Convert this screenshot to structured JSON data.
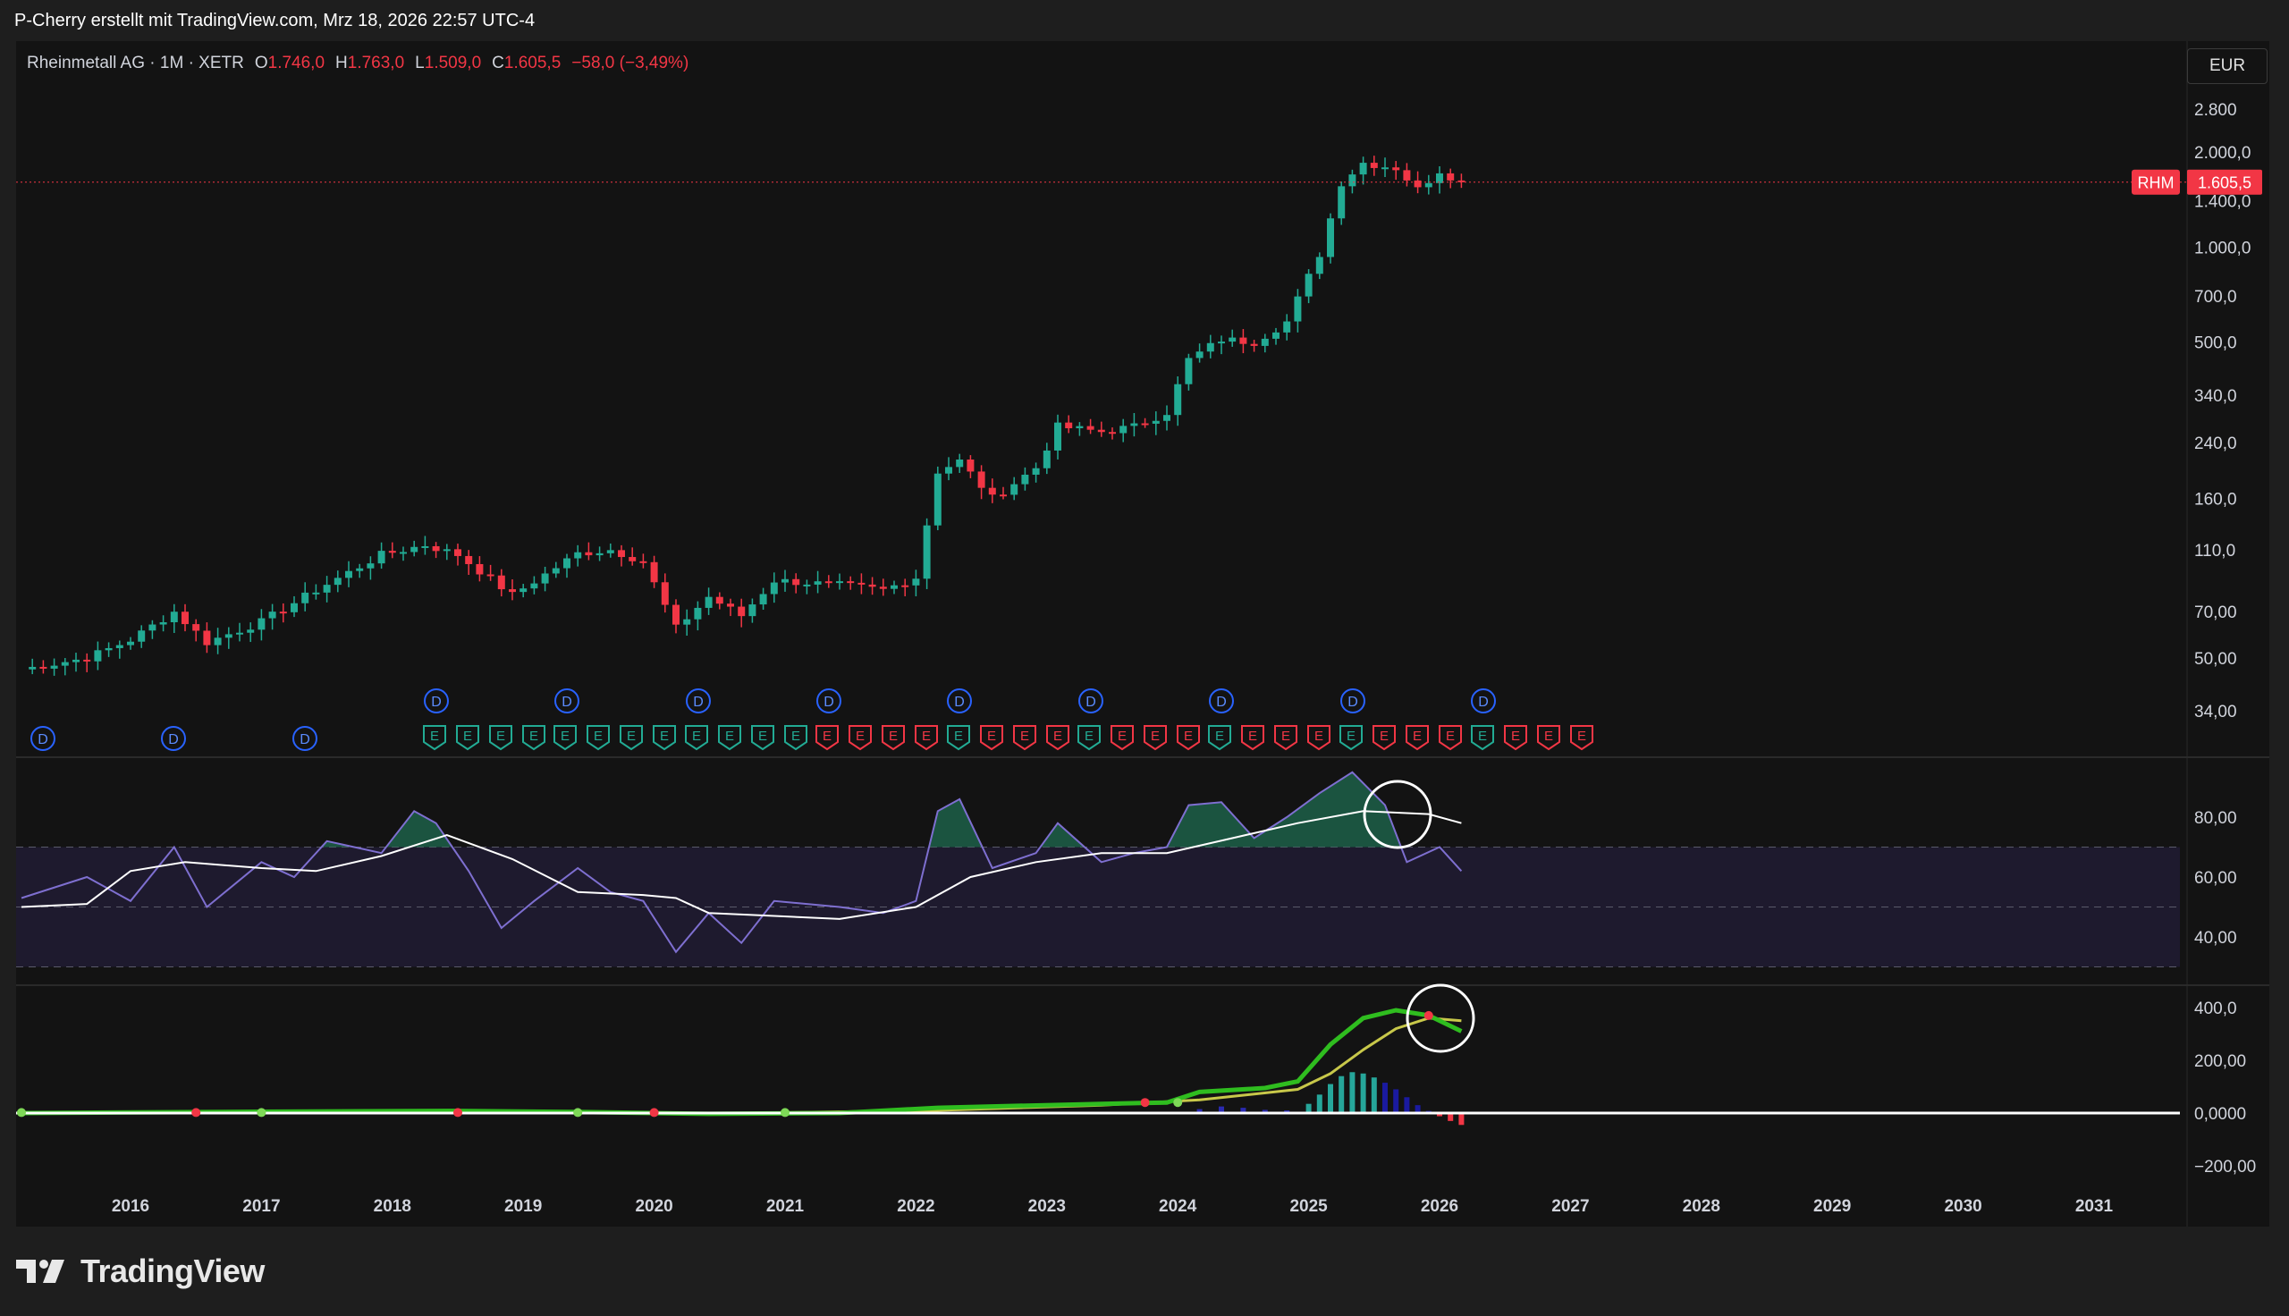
{
  "header": {
    "credit": "P-Cherry erstellt mit TradingView.com, Mrz 18, 2026 22:57 UTC-4"
  },
  "legend": {
    "symbol": "Rheinmetall AG · 1M · XETR",
    "open_label": "O",
    "open": "1.746,0",
    "high_label": "H",
    "high": "1.763,0",
    "low_label": "L",
    "low": "1.509,0",
    "close_label": "C",
    "close": "1.605,5",
    "change": "−58,0 (−3,49%)"
  },
  "currency_button": "EUR",
  "price_tag": {
    "ticker": "RHM",
    "value": "1.605,5"
  },
  "footer": {
    "brand": "TradingView"
  },
  "colors": {
    "background": "#131313",
    "up": "#22ab94",
    "down": "#f23645",
    "rsi": "#7e6fd0",
    "rsi_ma": "#ffffff",
    "macd": "#2fbd1f",
    "signal": "#c8c84a",
    "hist_neg": "#f23645"
  },
  "chart_data": [
    {
      "type": "candlestick",
      "name": "price",
      "scale": "log",
      "y_ticks": [
        2800,
        2000,
        1400,
        1000,
        700,
        500,
        340,
        240,
        160,
        110,
        70,
        50,
        34
      ],
      "y_tick_labels": [
        "2.800",
        "2.000,0",
        "1.400,0",
        "1.000,0",
        "700,0",
        "500,0",
        "340,0",
        "240,0",
        "160,0",
        "110,0",
        "70,00",
        "50,00",
        "34,00"
      ],
      "x_ticks": [
        "2016",
        "2017",
        "2018",
        "2019",
        "2020",
        "2021",
        "2022",
        "2023",
        "2024",
        "2025",
        "2026",
        "2027",
        "2028",
        "2029",
        "2030",
        "2031"
      ],
      "last_price": 1605.5,
      "anchors": [
        [
          "2015-03",
          46
        ],
        [
          "2015-09",
          50
        ],
        [
          "2016-01",
          57
        ],
        [
          "2016-05",
          70
        ],
        [
          "2016-08",
          56
        ],
        [
          "2017-01",
          65
        ],
        [
          "2017-06",
          82
        ],
        [
          "2017-12",
          106
        ],
        [
          "2018-04",
          114
        ],
        [
          "2018-07",
          106
        ],
        [
          "2018-12",
          79
        ],
        [
          "2019-06",
          107
        ],
        [
          "2019-09",
          110
        ],
        [
          "2019-12",
          101
        ],
        [
          "2020-03",
          62
        ],
        [
          "2020-06",
          78
        ],
        [
          "2020-09",
          68
        ],
        [
          "2020-12",
          88
        ],
        [
          "2021-06",
          85
        ],
        [
          "2021-10",
          82
        ],
        [
          "2022-01",
          90
        ],
        [
          "2022-03",
          195
        ],
        [
          "2022-05",
          210
        ],
        [
          "2022-08",
          160
        ],
        [
          "2022-12",
          200
        ],
        [
          "2023-02",
          270
        ],
        [
          "2023-06",
          260
        ],
        [
          "2023-09",
          270
        ],
        [
          "2023-12",
          300
        ],
        [
          "2024-02",
          440
        ],
        [
          "2024-05",
          510
        ],
        [
          "2024-08",
          500
        ],
        [
          "2024-11",
          580
        ],
        [
          "2025-02",
          950
        ],
        [
          "2025-04",
          1600
        ],
        [
          "2025-06",
          1850
        ],
        [
          "2025-09",
          1780
        ],
        [
          "2025-11",
          1520
        ],
        [
          "2026-01",
          1746
        ],
        [
          "2026-03",
          1605.5
        ]
      ],
      "dividend_markers": [
        "D",
        "D",
        "D",
        "D",
        "D",
        "D",
        "D",
        "D",
        "D",
        "D",
        "D",
        "D"
      ],
      "earnings_markers": [
        "E",
        "E",
        "E",
        "E",
        "E",
        "E",
        "E",
        "E",
        "E",
        "E",
        "E",
        "E",
        "E",
        "E",
        "E",
        "E",
        "E",
        "E",
        "E",
        "E",
        "E",
        "E",
        "E",
        "E",
        "E",
        "E",
        "E",
        "E",
        "E",
        "E",
        "E",
        "E",
        "E",
        "E",
        "E",
        "E"
      ]
    },
    {
      "type": "line",
      "name": "rsi",
      "y_ticks": [
        80,
        60,
        40
      ],
      "y_tick_labels": [
        "80,00",
        "60,00",
        "40,00"
      ],
      "band": [
        30,
        70
      ],
      "mid": 50,
      "series_rsi": [
        [
          "2015-03",
          53
        ],
        [
          "2015-09",
          60
        ],
        [
          "2016-01",
          52
        ],
        [
          "2016-05",
          70
        ],
        [
          "2016-08",
          50
        ],
        [
          "2017-01",
          65
        ],
        [
          "2017-04",
          60
        ],
        [
          "2017-07",
          72
        ],
        [
          "2017-12",
          68
        ],
        [
          "2018-03",
          82
        ],
        [
          "2018-05",
          78
        ],
        [
          "2018-08",
          62
        ],
        [
          "2018-11",
          43
        ],
        [
          "2019-02",
          52
        ],
        [
          "2019-06",
          63
        ],
        [
          "2019-09",
          55
        ],
        [
          "2019-12",
          52
        ],
        [
          "2020-03",
          35
        ],
        [
          "2020-06",
          48
        ],
        [
          "2020-09",
          38
        ],
        [
          "2020-12",
          52
        ],
        [
          "2021-06",
          50
        ],
        [
          "2021-10",
          48
        ],
        [
          "2022-01",
          52
        ],
        [
          "2022-03",
          82
        ],
        [
          "2022-05",
          86
        ],
        [
          "2022-08",
          63
        ],
        [
          "2022-12",
          68
        ],
        [
          "2023-02",
          78
        ],
        [
          "2023-06",
          65
        ],
        [
          "2023-09",
          68
        ],
        [
          "2023-12",
          70
        ],
        [
          "2024-02",
          84
        ],
        [
          "2024-05",
          85
        ],
        [
          "2024-08",
          73
        ],
        [
          "2024-11",
          80
        ],
        [
          "2025-02",
          88
        ],
        [
          "2025-05",
          95
        ],
        [
          "2025-08",
          84
        ],
        [
          "2025-10",
          65
        ],
        [
          "2026-01",
          70
        ],
        [
          "2026-03",
          62
        ]
      ],
      "series_ma": [
        [
          "2015-03",
          50
        ],
        [
          "2015-09",
          51
        ],
        [
          "2016-01",
          62
        ],
        [
          "2016-06",
          65
        ],
        [
          "2017-01",
          63
        ],
        [
          "2017-06",
          62
        ],
        [
          "2017-12",
          67
        ],
        [
          "2018-06",
          74
        ],
        [
          "2018-12",
          66
        ],
        [
          "2019-06",
          55
        ],
        [
          "2019-12",
          54
        ],
        [
          "2020-03",
          53
        ],
        [
          "2020-06",
          48
        ],
        [
          "2020-12",
          47
        ],
        [
          "2021-06",
          46
        ],
        [
          "2022-01",
          50
        ],
        [
          "2022-06",
          60
        ],
        [
          "2022-12",
          65
        ],
        [
          "2023-06",
          68
        ],
        [
          "2023-12",
          68
        ],
        [
          "2024-06",
          73
        ],
        [
          "2024-12",
          78
        ],
        [
          "2025-06",
          82
        ],
        [
          "2025-12",
          81
        ],
        [
          "2026-03",
          78
        ]
      ]
    },
    {
      "type": "line",
      "name": "macd",
      "y_ticks": [
        400,
        200,
        0,
        -200
      ],
      "y_tick_labels": [
        "400,0",
        "200,00",
        "0,0000",
        "−200,00"
      ],
      "series_macd": [
        [
          "2015-03",
          0
        ],
        [
          "2017-01",
          5
        ],
        [
          "2018-06",
          8
        ],
        [
          "2019-06",
          4
        ],
        [
          "2020-06",
          -3
        ],
        [
          "2021-06",
          0
        ],
        [
          "2022-03",
          20
        ],
        [
          "2023-06",
          35
        ],
        [
          "2023-12",
          40
        ],
        [
          "2024-03",
          80
        ],
        [
          "2024-09",
          95
        ],
        [
          "2024-12",
          120
        ],
        [
          "2025-03",
          260
        ],
        [
          "2025-06",
          360
        ],
        [
          "2025-09",
          390
        ],
        [
          "2025-12",
          370
        ],
        [
          "2026-03",
          310
        ]
      ],
      "series_signal": [
        [
          "2015-03",
          0
        ],
        [
          "2018-06",
          6
        ],
        [
          "2020-06",
          -2
        ],
        [
          "2022-03",
          10
        ],
        [
          "2023-06",
          30
        ],
        [
          "2024-03",
          50
        ],
        [
          "2024-12",
          90
        ],
        [
          "2025-03",
          150
        ],
        [
          "2025-06",
          240
        ],
        [
          "2025-09",
          320
        ],
        [
          "2025-12",
          360
        ],
        [
          "2026-03",
          350
        ]
      ],
      "histogram": [
        [
          "2024-01",
          5
        ],
        [
          "2024-03",
          15
        ],
        [
          "2024-05",
          25
        ],
        [
          "2024-07",
          20
        ],
        [
          "2024-09",
          12
        ],
        [
          "2024-11",
          10
        ],
        [
          "2025-01",
          35
        ],
        [
          "2025-02",
          70
        ],
        [
          "2025-03",
          110
        ],
        [
          "2025-04",
          140
        ],
        [
          "2025-05",
          155
        ],
        [
          "2025-06",
          150
        ],
        [
          "2025-07",
          135
        ],
        [
          "2025-08",
          115
        ],
        [
          "2025-09",
          90
        ],
        [
          "2025-10",
          60
        ],
        [
          "2025-11",
          30
        ],
        [
          "2025-12",
          8
        ],
        [
          "2026-01",
          -12
        ],
        [
          "2026-02",
          -30
        ],
        [
          "2026-03",
          -45
        ]
      ]
    }
  ]
}
